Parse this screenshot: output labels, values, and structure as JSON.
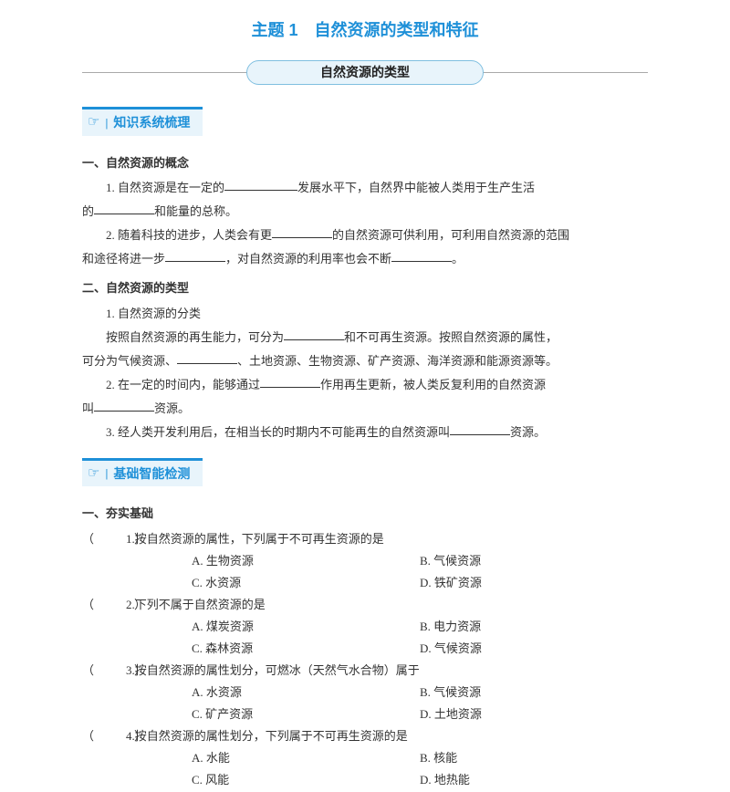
{
  "colors": {
    "accent": "#1E90D8",
    "box_bg": "#E8F4FB",
    "box_border": "#7FBFE0",
    "text": "#333333",
    "rule": "#aaaaaa",
    "bg": "#ffffff"
  },
  "typography": {
    "body_family": "SimSun",
    "heading_family": "SimHei",
    "title_size_pt": 18,
    "subtitle_size_pt": 14,
    "body_size_pt": 13
  },
  "title": "主题 1　自然资源的类型和特征",
  "subtitle": "自然资源的类型",
  "sec1": {
    "label": "知识系统梳理",
    "h1": "一、自然资源的概念",
    "p1a": "1. 自然资源是在一定的",
    "p1b": "发展水平下，自然界中能被人类用于生产生活",
    "p1c": "的",
    "p1d": "和能量的总称。",
    "p2a": "2. 随着科技的进步，人类会有更",
    "p2b": "的自然资源可供利用，可利用自然资源的范围",
    "p2c": "和途径将进一步",
    "p2d": "，对自然资源的利用率也会不断",
    "p2e": "。",
    "h2": "二、自然资源的类型",
    "p3": "1. 自然资源的分类",
    "p4a": "按照自然资源的再生能力，可分为",
    "p4b": "和不可再生资源。按照自然资源的属性，",
    "p4c": "可分为气候资源、",
    "p4d": "、土地资源、生物资源、矿产资源、海洋资源和能源资源等。",
    "p5a": "2. 在一定的时间内，能够通过",
    "p5b": "作用再生更新，被人类反复利用的自然资源",
    "p5c": "叫",
    "p5d": "资源。",
    "p6a": "3. 经人类开发利用后，在相当长的时期内不可能再生的自然资源叫",
    "p6b": "资源。"
  },
  "sec2": {
    "label": "基础智能检测",
    "h1": "一、夯实基础",
    "paren": "（　　）",
    "questions": [
      {
        "num": "1. ",
        "stem": "按自然资源的属性，下列属于不可再生资源的是",
        "opts": [
          "A. 生物资源",
          "B. 气候资源",
          "C. 水资源",
          "D. 铁矿资源"
        ]
      },
      {
        "num": "2. ",
        "stem": "下列不属于自然资源的是",
        "opts": [
          "A. 煤炭资源",
          "B. 电力资源",
          "C. 森林资源",
          "D. 气候资源"
        ]
      },
      {
        "num": "3. ",
        "stem": "按自然资源的属性划分，可燃冰（天然气水合物）属于",
        "opts": [
          "A. 水资源",
          "B. 气候资源",
          "C. 矿产资源",
          "D. 土地资源"
        ]
      },
      {
        "num": "4. ",
        "stem": "按自然资源的属性划分，下列属于不可再生资源的是",
        "opts": [
          "A. 水能",
          "B. 核能",
          "C. 风能",
          "D. 地热能"
        ]
      }
    ]
  }
}
